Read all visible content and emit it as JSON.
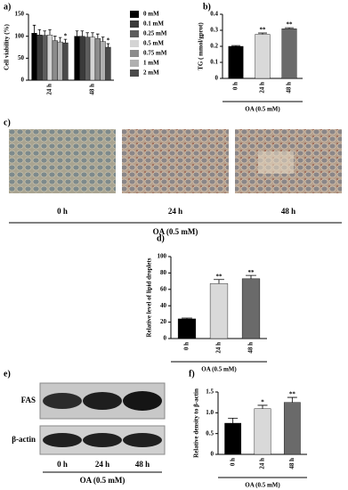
{
  "panel_labels": [
    "a)",
    "b)",
    "c)",
    "d)",
    "e)",
    "f)"
  ],
  "chart_data": [
    {
      "type": "bar",
      "ylabel": "Cell viability (%)",
      "categories": [
        "24 h",
        "48 h"
      ],
      "series": [
        {
          "name": "0 mM",
          "color": "#000000",
          "values": [
            107,
            100
          ],
          "errors": [
            18,
            12
          ],
          "significance": [
            null,
            null
          ]
        },
        {
          "name": "0.1 mM",
          "color": "#3a3a3a",
          "values": [
            103,
            100
          ],
          "errors": [
            12,
            12
          ],
          "significance": [
            null,
            null
          ]
        },
        {
          "name": "0.25 mM",
          "color": "#5e5e5e",
          "values": [
            102,
            98
          ],
          "errors": [
            10,
            10
          ],
          "significance": [
            null,
            null
          ]
        },
        {
          "name": "0.5 mM",
          "color": "#d4d4d4",
          "values": [
            103,
            98
          ],
          "errors": [
            12,
            10
          ],
          "significance": [
            null,
            null
          ]
        },
        {
          "name": "0.75 mM",
          "color": "#8c8c8c",
          "values": [
            90,
            95
          ],
          "errors": [
            10,
            10
          ],
          "significance": [
            null,
            null
          ]
        },
        {
          "name": "1 mM",
          "color": "#b0b0b0",
          "values": [
            87,
            88
          ],
          "errors": [
            10,
            10
          ],
          "significance": [
            null,
            null
          ]
        },
        {
          "name": "2 mM",
          "color": "#4a4a4a",
          "values": [
            85,
            75
          ],
          "errors": [
            8,
            8
          ],
          "significance": [
            "*",
            "*"
          ]
        }
      ],
      "ylim": [
        0,
        150
      ],
      "yticks": [
        0,
        50,
        100,
        150
      ],
      "legend": "right"
    },
    {
      "type": "bar",
      "ylabel": "TG ( mmol/gprot)",
      "xlabel": "OA (0.5 mM)",
      "categories": [
        "0 h",
        "24 h",
        "48 h"
      ],
      "values": [
        0.2,
        0.275,
        0.31
      ],
      "errors": [
        0.005,
        0.008,
        0.006
      ],
      "significance": [
        null,
        "**",
        "**"
      ],
      "colors": [
        "#000000",
        "#d9d9d9",
        "#6a6a6a"
      ],
      "ylim": [
        0,
        0.4
      ],
      "yticks": [
        0,
        0.1,
        0.2,
        0.3,
        0.4
      ]
    },
    {
      "type": "bar",
      "ylabel": "Relative  level of lipid droplets",
      "xlabel": "OA (0.5 mM)",
      "categories": [
        "0 h",
        "24 h",
        "48 h"
      ],
      "values": [
        24,
        67,
        73
      ],
      "errors": [
        1,
        5,
        4
      ],
      "significance": [
        null,
        "**",
        "**"
      ],
      "colors": [
        "#000000",
        "#d9d9d9",
        "#6a6a6a"
      ],
      "ylim": [
        0,
        100
      ],
      "yticks": [
        0,
        20,
        40,
        60,
        80,
        100
      ]
    },
    {
      "type": "bar",
      "ylabel": "Relative density to β-actin",
      "xlabel": "OA (0.5 mM)",
      "categories": [
        "0 h",
        "24 h",
        "48 h"
      ],
      "values": [
        0.75,
        1.1,
        1.25
      ],
      "errors": [
        0.12,
        0.08,
        0.12
      ],
      "significance": [
        null,
        "*",
        "**"
      ],
      "colors": [
        "#000000",
        "#d9d9d9",
        "#6a6a6a"
      ],
      "ylim": [
        0,
        1.5
      ],
      "yticks": [
        0,
        0.5,
        {
          "value": 1,
          "label": "1.0"
        },
        1.5
      ]
    }
  ],
  "micrographs": {
    "labels": [
      "0 h",
      "24 h",
      "48 h"
    ],
    "xlabel": "OA (0.5 mM)"
  },
  "blot": {
    "rows": [
      "FAS",
      "β-actin"
    ],
    "lanes": [
      "0 h",
      "24 h",
      "48 h"
    ],
    "xlabel": "OA (0.5 mM)"
  }
}
